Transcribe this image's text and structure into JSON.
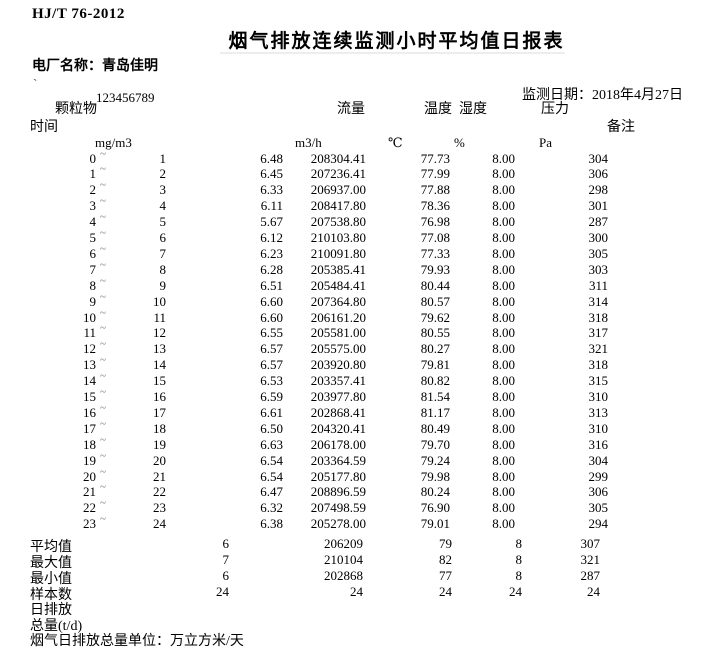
{
  "doc": {
    "standard_code": "HJ/T 76-2012",
    "title": "烟气排放连续监测小时平均值日报表",
    "plant_label": "电厂名称：",
    "plant_name": "青岛佳明",
    "tick_mark": "`",
    "serial_number": "123456789",
    "date_label": "监测日期：",
    "date_value": "2018年4月27日"
  },
  "table": {
    "tilde": "~",
    "headers": {
      "time": "时间",
      "particulate": "颗粒物",
      "flow": "流量",
      "temperature": "温度",
      "humidity": "湿度",
      "pressure": "压力",
      "remark": "备注"
    },
    "units": {
      "particulate": "mg/m3",
      "flow": "m3/h",
      "temperature": "℃",
      "humidity": "%",
      "pressure": "Pa"
    },
    "rows": [
      {
        "start": "0",
        "end": "1",
        "dust": "6.48",
        "flow": "208304.41",
        "temp": "77.73",
        "hum": "8.00",
        "press": "304"
      },
      {
        "start": "1",
        "end": "2",
        "dust": "6.45",
        "flow": "207236.41",
        "temp": "77.99",
        "hum": "8.00",
        "press": "306"
      },
      {
        "start": "2",
        "end": "3",
        "dust": "6.33",
        "flow": "206937.00",
        "temp": "77.88",
        "hum": "8.00",
        "press": "298"
      },
      {
        "start": "3",
        "end": "4",
        "dust": "6.11",
        "flow": "208417.80",
        "temp": "78.36",
        "hum": "8.00",
        "press": "301"
      },
      {
        "start": "4",
        "end": "5",
        "dust": "5.67",
        "flow": "207538.80",
        "temp": "76.98",
        "hum": "8.00",
        "press": "287"
      },
      {
        "start": "5",
        "end": "6",
        "dust": "6.12",
        "flow": "210103.80",
        "temp": "77.08",
        "hum": "8.00",
        "press": "300"
      },
      {
        "start": "6",
        "end": "7",
        "dust": "6.23",
        "flow": "210091.80",
        "temp": "77.33",
        "hum": "8.00",
        "press": "305"
      },
      {
        "start": "7",
        "end": "8",
        "dust": "6.28",
        "flow": "205385.41",
        "temp": "79.93",
        "hum": "8.00",
        "press": "303"
      },
      {
        "start": "8",
        "end": "9",
        "dust": "6.51",
        "flow": "205484.41",
        "temp": "80.44",
        "hum": "8.00",
        "press": "311"
      },
      {
        "start": "9",
        "end": "10",
        "dust": "6.60",
        "flow": "207364.80",
        "temp": "80.57",
        "hum": "8.00",
        "press": "314"
      },
      {
        "start": "10",
        "end": "11",
        "dust": "6.60",
        "flow": "206161.20",
        "temp": "79.62",
        "hum": "8.00",
        "press": "318"
      },
      {
        "start": "11",
        "end": "12",
        "dust": "6.55",
        "flow": "205581.00",
        "temp": "80.55",
        "hum": "8.00",
        "press": "317"
      },
      {
        "start": "12",
        "end": "13",
        "dust": "6.57",
        "flow": "205575.00",
        "temp": "80.27",
        "hum": "8.00",
        "press": "321"
      },
      {
        "start": "13",
        "end": "14",
        "dust": "6.57",
        "flow": "203920.80",
        "temp": "79.81",
        "hum": "8.00",
        "press": "318"
      },
      {
        "start": "14",
        "end": "15",
        "dust": "6.53",
        "flow": "203357.41",
        "temp": "80.82",
        "hum": "8.00",
        "press": "315"
      },
      {
        "start": "15",
        "end": "16",
        "dust": "6.59",
        "flow": "203977.80",
        "temp": "81.54",
        "hum": "8.00",
        "press": "310"
      },
      {
        "start": "16",
        "end": "17",
        "dust": "6.61",
        "flow": "202868.41",
        "temp": "81.17",
        "hum": "8.00",
        "press": "313"
      },
      {
        "start": "17",
        "end": "18",
        "dust": "6.50",
        "flow": "204320.41",
        "temp": "80.49",
        "hum": "8.00",
        "press": "310"
      },
      {
        "start": "18",
        "end": "19",
        "dust": "6.63",
        "flow": "206178.00",
        "temp": "79.70",
        "hum": "8.00",
        "press": "316"
      },
      {
        "start": "19",
        "end": "20",
        "dust": "6.54",
        "flow": "203364.59",
        "temp": "79.24",
        "hum": "8.00",
        "press": "304"
      },
      {
        "start": "20",
        "end": "21",
        "dust": "6.54",
        "flow": "205177.80",
        "temp": "79.98",
        "hum": "8.00",
        "press": "299"
      },
      {
        "start": "21",
        "end": "22",
        "dust": "6.47",
        "flow": "208896.59",
        "temp": "80.24",
        "hum": "8.00",
        "press": "306"
      },
      {
        "start": "22",
        "end": "23",
        "dust": "6.32",
        "flow": "207498.59",
        "temp": "76.90",
        "hum": "8.00",
        "press": "305"
      },
      {
        "start": "23",
        "end": "24",
        "dust": "6.38",
        "flow": "205278.00",
        "temp": "79.01",
        "hum": "8.00",
        "press": "294"
      }
    ],
    "summary": [
      {
        "label": "平均值",
        "dust": "6",
        "flow": "206209",
        "temp": "79",
        "hum": "8",
        "press": "307"
      },
      {
        "label": "最大值",
        "dust": "7",
        "flow": "210104",
        "temp": "82",
        "hum": "8",
        "press": "321"
      },
      {
        "label": "最小值",
        "dust": "6",
        "flow": "202868",
        "temp": "77",
        "hum": "8",
        "press": "287"
      },
      {
        "label": "样本数",
        "dust": "24",
        "flow": "24",
        "temp": "24",
        "hum": "24",
        "press": "24"
      }
    ],
    "extra_labels": [
      "日排放",
      "总量(t/d)"
    ],
    "footer_note": "烟气日排放总量单位：万立方米/天"
  },
  "colors": {
    "text": "#000000",
    "tilde": "#777777",
    "background": "#ffffff"
  }
}
